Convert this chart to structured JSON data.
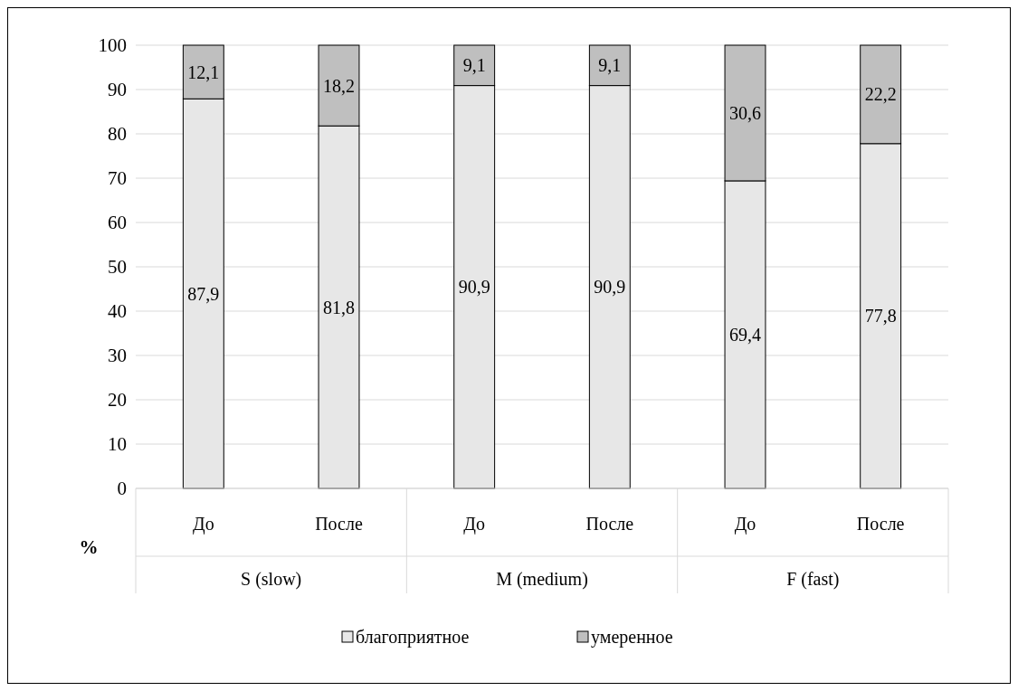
{
  "chart_data": {
    "type": "bar",
    "stacked": true,
    "categories": [
      "До",
      "После",
      "До",
      "После",
      "До",
      "После"
    ],
    "series": [
      {
        "name": "благоприятное",
        "color": "#e7e7e7",
        "values": [
          87.9,
          81.8,
          90.9,
          90.9,
          69.4,
          77.8
        ],
        "value_labels": [
          "87,9",
          "81,8",
          "90,9",
          "90,9",
          "69,4",
          "77,8"
        ]
      },
      {
        "name": "умеренное",
        "color": "#bfbfbf",
        "values": [
          12.1,
          18.2,
          9.1,
          9.1,
          30.6,
          22.2
        ],
        "value_labels": [
          "12,1",
          "18,2",
          "9,1",
          "9,1",
          "30,6",
          "22,2"
        ]
      }
    ],
    "ylim": [
      0,
      100
    ],
    "yticks": [
      0,
      10,
      20,
      30,
      40,
      50,
      60,
      70,
      80,
      90,
      100
    ],
    "ylabel": "%",
    "grid": "y",
    "legend": "bottom",
    "annotations": [
      "S (slow)",
      "M (medium)",
      "F (fast)"
    ]
  }
}
